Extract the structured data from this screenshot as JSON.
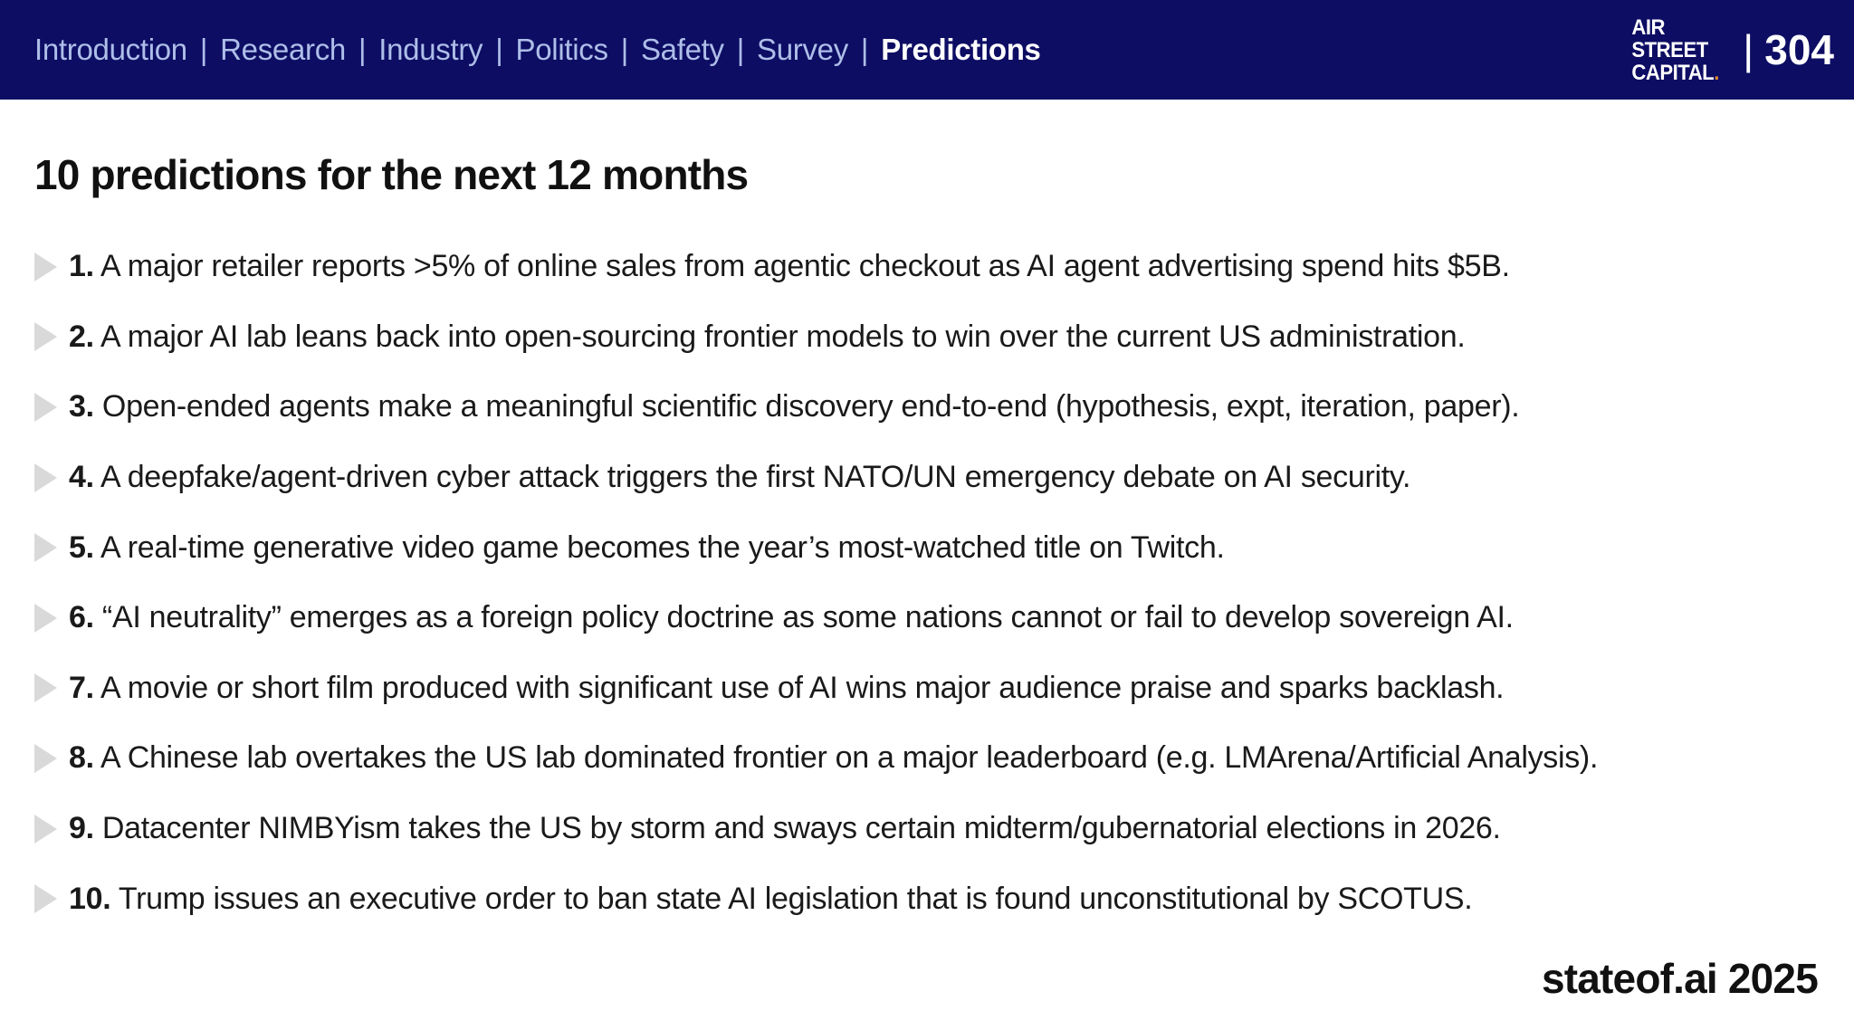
{
  "header": {
    "nav": {
      "items": [
        "Introduction",
        "Research",
        "Industry",
        "Politics",
        "Safety",
        "Survey"
      ],
      "active": "Predictions",
      "separator": "|"
    },
    "logo": {
      "line1": "AIR",
      "line2": "STREET",
      "line3": "CAPITAL",
      "dot": "."
    },
    "page": {
      "pipe": "|",
      "number": "304"
    }
  },
  "main": {
    "title": "10 predictions for the next 12 months",
    "predictions": [
      {
        "num": "1.",
        "text": "A major retailer reports >5% of online sales from agentic checkout as AI agent advertising spend hits $5B."
      },
      {
        "num": "2.",
        "text": "A major AI lab leans back into open-sourcing frontier models to win over the current US administration."
      },
      {
        "num": "3.",
        "text": "Open-ended agents make a meaningful scientific discovery end-to-end (hypothesis, expt, iteration, paper)."
      },
      {
        "num": "4.",
        "text": "A deepfake/agent-driven cyber attack triggers the first NATO/UN emergency debate on AI security."
      },
      {
        "num": "5.",
        "text": "A real-time generative video game becomes the year’s most-watched title on Twitch."
      },
      {
        "num": "6.",
        "text": "“AI neutrality” emerges as a foreign policy doctrine as some nations cannot or fail to develop sovereign AI."
      },
      {
        "num": "7.",
        "text": "A movie or short film produced with significant use of AI wins major audience praise and sparks backlash."
      },
      {
        "num": "8.",
        "text": "A Chinese lab overtakes the US lab dominated frontier on a major leaderboard (e.g. LMArena/Artificial Analysis)."
      },
      {
        "num": "9.",
        "text": "Datacenter NIMBYism takes the US by storm and sways certain midterm/gubernatorial elections in 2026."
      },
      {
        "num": "10.",
        "text": "Trump issues an executive order to ban state AI legislation that is found unconstitutional by SCOTUS."
      }
    ]
  },
  "footer": {
    "brand": "stateof.ai 2025"
  },
  "colors": {
    "bar_background": "#0d0d64",
    "nav_inactive": "#aebee8",
    "nav_active": "#ffffff",
    "logo_dot_accent": "#e08a2c",
    "bullet_gray": "#d9d9d9",
    "body_text": "#1a1a1a"
  }
}
